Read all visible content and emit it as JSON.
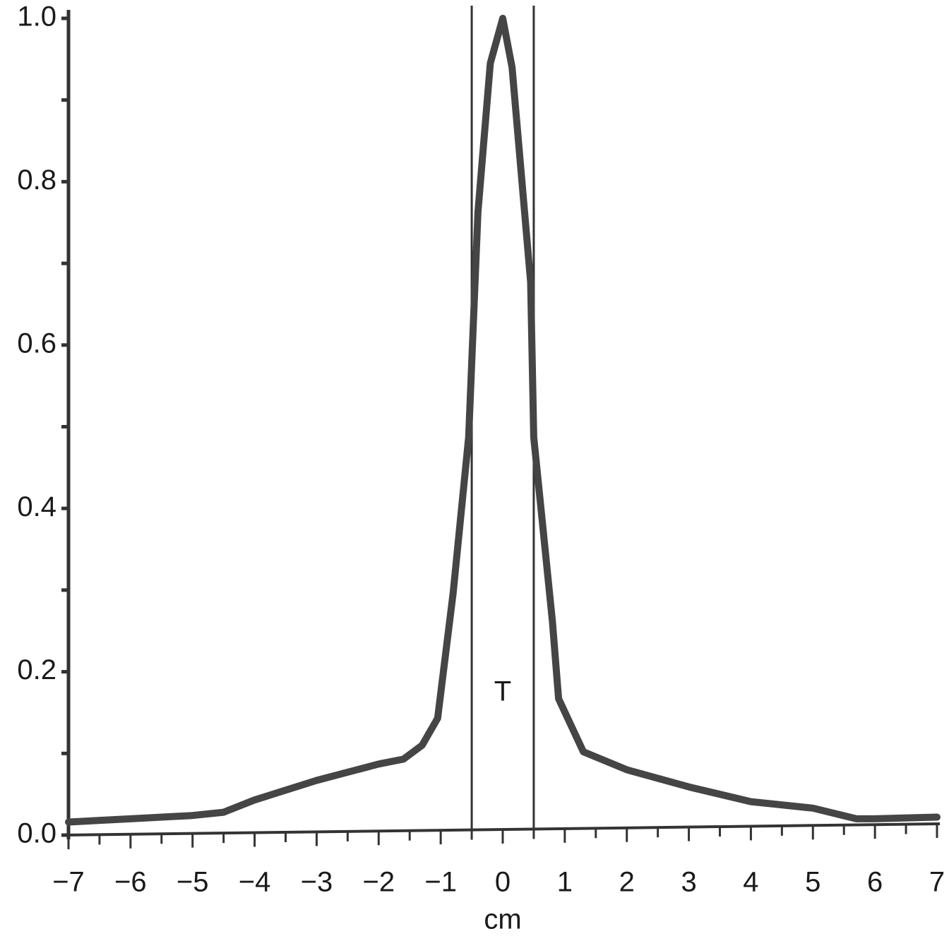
{
  "chart_data": {
    "type": "line",
    "x": [
      -7,
      -6,
      -5,
      -4.5,
      -4,
      -3,
      -2,
      -1.6,
      -1.3,
      -1.05,
      -0.8,
      -0.55,
      -0.4,
      -0.2,
      0,
      0.15,
      0.45,
      0.5,
      0.8,
      0.9,
      1.3,
      2,
      3,
      4,
      5,
      5.7,
      6,
      7
    ],
    "values": [
      0.016,
      0.02,
      0.024,
      0.028,
      0.043,
      0.067,
      0.087,
      0.093,
      0.11,
      0.143,
      0.296,
      0.487,
      0.763,
      0.945,
      1.0,
      0.94,
      0.677,
      0.487,
      0.262,
      0.167,
      0.102,
      0.08,
      0.059,
      0.041,
      0.033,
      0.02,
      0.02,
      0.022
    ],
    "color": "#454545",
    "xlabel": "cm",
    "xlim": [
      -7,
      7
    ],
    "ylim": [
      0,
      1
    ],
    "xticks": [
      {
        "value": -7,
        "label": "−7"
      },
      {
        "value": -6,
        "label": "−6"
      },
      {
        "value": -5,
        "label": "−5"
      },
      {
        "value": -4,
        "label": "−4"
      },
      {
        "value": -3,
        "label": "−3"
      },
      {
        "value": -2,
        "label": "−2"
      },
      {
        "value": -1,
        "label": "−1"
      },
      0,
      1,
      2,
      3,
      4,
      5,
      6,
      7
    ],
    "xminorticks": [
      -6.5,
      -5.5,
      -4.5,
      -3.5,
      -2.5,
      -1.5,
      -0.5,
      0.5,
      1.5,
      2.5,
      3.5,
      4.5,
      5.5,
      6.5
    ],
    "yticks": [
      {
        "value": 0,
        "label": "0.0"
      },
      0.2,
      0.4,
      0.6,
      0.8,
      {
        "value": 1,
        "label": "1.0"
      }
    ],
    "yminorticks": [
      0.1,
      0.3,
      0.5,
      0.7,
      0.9
    ],
    "vlines": [
      -0.5,
      0.5
    ],
    "annotation": "T"
  }
}
